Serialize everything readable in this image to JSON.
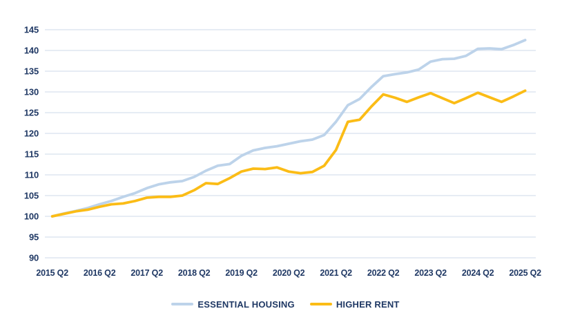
{
  "colors": {
    "text_navy": "#1F3864",
    "grid": "#D8E0ED",
    "background": "#FFFFFF"
  },
  "chart_data": {
    "type": "line",
    "title": "",
    "xlabel": "",
    "ylabel": "",
    "grid": "horizontal",
    "legend_position": "bottom",
    "y_ticks": [
      145,
      140,
      135,
      130,
      125,
      120,
      115,
      110,
      105,
      100,
      95,
      90
    ],
    "ylim": [
      90,
      145
    ],
    "x_tick_labels": [
      "2015 Q2",
      "2016 Q2",
      "2017 Q2",
      "2018 Q2",
      "2019 Q2",
      "2020 Q2",
      "2021 Q2",
      "2022 Q2",
      "2023 Q2",
      "2024 Q2",
      "2025 Q2"
    ],
    "x_unit": "quarter",
    "x_start": "2015 Q2",
    "x_end": "2025 Q2",
    "series": [
      {
        "name": "ESSENTIAL HOUSING",
        "color": "#BDD3EA",
        "values": [
          100.0,
          100.7,
          101.3,
          102.0,
          102.9,
          103.7,
          104.7,
          105.6,
          106.8,
          107.7,
          108.2,
          108.5,
          109.5,
          111.0,
          112.2,
          112.6,
          114.6,
          115.9,
          116.5,
          116.9,
          117.5,
          118.1,
          118.5,
          119.6,
          122.8,
          126.8,
          128.3,
          131.2,
          133.8,
          134.3,
          134.7,
          135.4,
          137.3,
          137.9,
          138.0,
          138.7,
          140.4,
          140.5,
          140.3,
          141.3,
          142.5
        ]
      },
      {
        "name": "HIGHER RENT",
        "color": "#FBBC16",
        "values": [
          100.0,
          100.6,
          101.2,
          101.6,
          102.3,
          102.9,
          103.1,
          103.7,
          104.5,
          104.7,
          104.7,
          105.0,
          106.3,
          108.0,
          107.8,
          109.2,
          110.8,
          111.5,
          111.4,
          111.8,
          110.8,
          110.4,
          110.7,
          112.2,
          116.0,
          122.8,
          123.3,
          126.5,
          129.4,
          128.6,
          127.6,
          128.7,
          129.7,
          128.5,
          127.3,
          128.5,
          129.8,
          128.7,
          127.6,
          128.9,
          130.3
        ]
      }
    ]
  }
}
